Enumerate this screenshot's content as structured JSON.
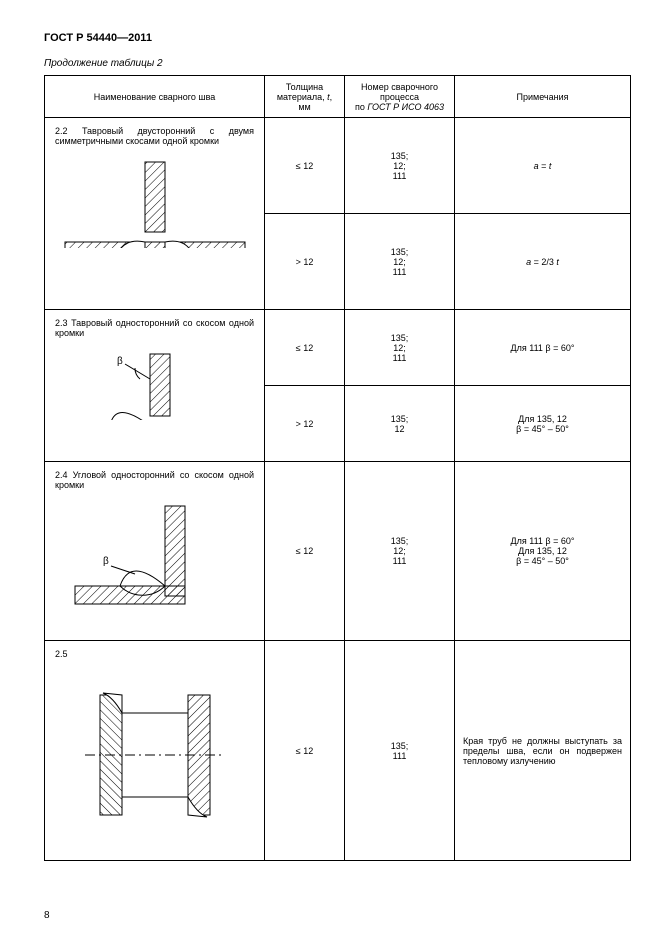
{
  "doc_title": "ГОСТ Р 54440—2011",
  "caption": "Продолжение таблицы 2",
  "page_number": "8",
  "headers": {
    "col1": "Наименование сварного шва",
    "col2_l1": "Толщина",
    "col2_l2": "материала,",
    "col2_l3": ", мм",
    "col2_var": "t",
    "col3_l1": "Номер сварочного",
    "col3_l2": "процесса",
    "col3_l3": "по",
    "col3_ref": "ГОСТ Р ИСО 4063",
    "col4": "Примечания"
  },
  "rows": [
    {
      "num": "2.2",
      "title": "Тавровый двусторонний с двумя симметричными скосами одной кромки",
      "diagram": "t-double-bevel",
      "sub": [
        {
          "thick": "≤ 12",
          "proc": [
            "135;",
            "12;",
            "111"
          ],
          "note_html": "<span class='ital'>a</span> = <span class='ital'>t</span>"
        },
        {
          "thick": "> 12",
          "proc": [
            "135;",
            "12;",
            "111"
          ],
          "note_html": "<span class='ital'>a</span> = 2/3 <span class='ital'>t</span>"
        }
      ]
    },
    {
      "num": "2.3",
      "title": "Тавровый односторонний со скосом одной кромки",
      "diagram": "t-single-bevel",
      "sub": [
        {
          "thick": "≤ 12",
          "proc": [
            "135;",
            "12;",
            "111"
          ],
          "note_html": "Для 111 β = 60°"
        },
        {
          "thick": "> 12",
          "proc": [
            "135;",
            "12"
          ],
          "note_html": "Для 135, 12<br>β = 45° – 50°"
        }
      ]
    },
    {
      "num": "2.4",
      "title": "Угловой односторонний со скосом одной кромки",
      "diagram": "corner-single-bevel",
      "sub": [
        {
          "thick": "≤ 12",
          "proc": [
            "135;",
            "12;",
            "111"
          ],
          "note_html": "Для 111 β = 60°<br>Для 135, 12<br>β = 45° – 50°"
        }
      ]
    },
    {
      "num": "2.5",
      "title": "",
      "diagram": "pipe",
      "sub": [
        {
          "thick": "≤ 12",
          "proc": [
            "135;",
            "111"
          ],
          "note_html": "Края труб не должны выступать за пределы шва, если он подвержен тепловому излучению",
          "note_align": "justify"
        }
      ]
    }
  ],
  "style": {
    "stroke": "#000000",
    "hatch": "#000000",
    "row_heights": {
      "r22": 96,
      "r23": 76,
      "r24": 140,
      "r25": 220
    }
  }
}
